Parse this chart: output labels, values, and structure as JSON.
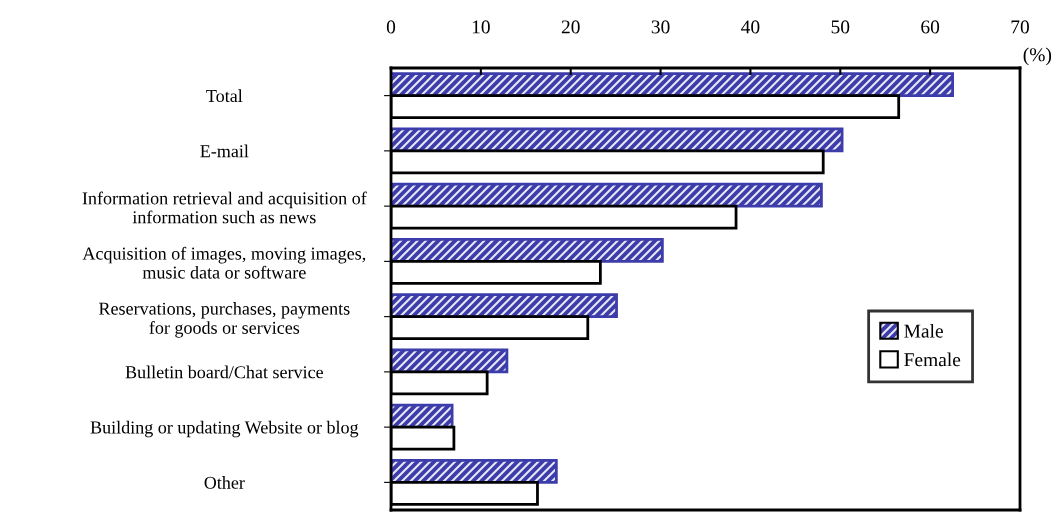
{
  "chart_data": {
    "type": "bar",
    "orientation": "horizontal",
    "xlabel": "(%)",
    "categories": [
      "Total",
      "E-mail",
      "Information retrieval and acquisition of\ninformation such as news",
      "Acquisition of images, moving images,\nmusic data or software",
      "Reservations, purchases, payments\nfor goods or services",
      "Bulletin board/Chat service",
      "Building or updating Website or blog",
      "Other"
    ],
    "series": [
      {
        "name": "Male",
        "color": "#3c3caa",
        "values": [
          62.5,
          50.2,
          47.9,
          30.2,
          25.1,
          12.9,
          6.8,
          18.4
        ]
      },
      {
        "name": "Female",
        "color": "#ffffff",
        "values": [
          56.5,
          48.1,
          38.4,
          23.3,
          21.9,
          10.7,
          7.0,
          16.3
        ]
      }
    ],
    "xlim": [
      0,
      70
    ],
    "xticks": [
      0,
      10,
      20,
      30,
      40,
      50,
      60,
      70
    ],
    "grid": false,
    "legend": "right"
  }
}
